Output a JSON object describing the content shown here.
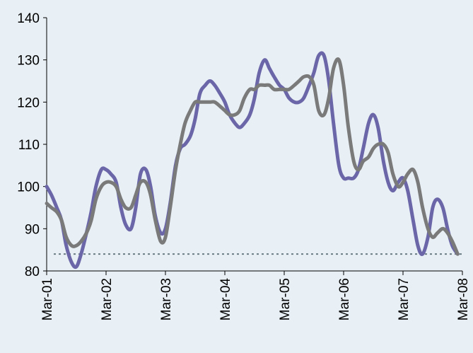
{
  "chart_data": {
    "type": "line",
    "title": "",
    "xlabel": "",
    "ylabel": "",
    "ylim": [
      80,
      140
    ],
    "yticks": [
      80,
      90,
      100,
      110,
      120,
      130,
      140
    ],
    "xlim": [
      2001.0,
      2008.0
    ],
    "xticks": [
      {
        "label": "Mar-01",
        "x": 2001.0
      },
      {
        "label": "Mar-02",
        "x": 2002.0
      },
      {
        "label": "Mar-03",
        "x": 2003.0
      },
      {
        "label": "Mar-04",
        "x": 2004.0
      },
      {
        "label": "Mar-05",
        "x": 2005.0
      },
      {
        "label": "Mar-06",
        "x": 2006.0
      },
      {
        "label": "Mar-07",
        "x": 2007.0
      },
      {
        "label": "Mar-08",
        "x": 2008.0
      }
    ],
    "grid": false,
    "legend": "none",
    "reference_line": {
      "y": 84,
      "style": "dotted",
      "color": "#6b7b83"
    },
    "series": [
      {
        "color": "#6a66a8",
        "points": [
          [
            2001.0,
            100
          ],
          [
            2001.08,
            98
          ],
          [
            2001.17,
            95
          ],
          [
            2001.25,
            92
          ],
          [
            2001.33,
            86
          ],
          [
            2001.42,
            82
          ],
          [
            2001.5,
            81
          ],
          [
            2001.58,
            84
          ],
          [
            2001.67,
            89
          ],
          [
            2001.75,
            94
          ],
          [
            2001.83,
            100
          ],
          [
            2001.92,
            104
          ],
          [
            2002.0,
            104
          ],
          [
            2002.08,
            103
          ],
          [
            2002.17,
            101
          ],
          [
            2002.25,
            95
          ],
          [
            2002.33,
            91
          ],
          [
            2002.42,
            90
          ],
          [
            2002.5,
            95
          ],
          [
            2002.58,
            103
          ],
          [
            2002.67,
            104
          ],
          [
            2002.75,
            100
          ],
          [
            2002.83,
            93
          ],
          [
            2002.92,
            89
          ],
          [
            2003.0,
            90
          ],
          [
            2003.08,
            96
          ],
          [
            2003.17,
            105
          ],
          [
            2003.25,
            109
          ],
          [
            2003.33,
            110
          ],
          [
            2003.42,
            112
          ],
          [
            2003.5,
            116
          ],
          [
            2003.58,
            122
          ],
          [
            2003.67,
            124
          ],
          [
            2003.75,
            125
          ],
          [
            2003.83,
            124
          ],
          [
            2003.92,
            122
          ],
          [
            2004.0,
            120
          ],
          [
            2004.08,
            117
          ],
          [
            2004.17,
            115
          ],
          [
            2004.25,
            114
          ],
          [
            2004.33,
            115
          ],
          [
            2004.42,
            117
          ],
          [
            2004.5,
            121
          ],
          [
            2004.58,
            127
          ],
          [
            2004.67,
            130
          ],
          [
            2004.75,
            128
          ],
          [
            2004.83,
            126
          ],
          [
            2004.92,
            124
          ],
          [
            2005.0,
            123
          ],
          [
            2005.08,
            121
          ],
          [
            2005.17,
            120
          ],
          [
            2005.25,
            120
          ],
          [
            2005.33,
            121
          ],
          [
            2005.42,
            124
          ],
          [
            2005.5,
            127
          ],
          [
            2005.58,
            131
          ],
          [
            2005.67,
            131
          ],
          [
            2005.75,
            125
          ],
          [
            2005.83,
            115
          ],
          [
            2005.92,
            105
          ],
          [
            2006.0,
            102
          ],
          [
            2006.08,
            102
          ],
          [
            2006.17,
            102
          ],
          [
            2006.25,
            104
          ],
          [
            2006.33,
            109
          ],
          [
            2006.42,
            115
          ],
          [
            2006.5,
            117
          ],
          [
            2006.58,
            114
          ],
          [
            2006.67,
            106
          ],
          [
            2006.75,
            101
          ],
          [
            2006.83,
            99
          ],
          [
            2006.92,
            101
          ],
          [
            2007.0,
            102
          ],
          [
            2007.08,
            99
          ],
          [
            2007.17,
            92
          ],
          [
            2007.25,
            86
          ],
          [
            2007.33,
            84
          ],
          [
            2007.42,
            88
          ],
          [
            2007.5,
            95
          ],
          [
            2007.58,
            97
          ],
          [
            2007.67,
            95
          ],
          [
            2007.75,
            90
          ],
          [
            2007.83,
            86
          ],
          [
            2007.92,
            84
          ]
        ]
      },
      {
        "color": "#7a7a7a",
        "points": [
          [
            2001.0,
            96
          ],
          [
            2001.08,
            95
          ],
          [
            2001.17,
            94
          ],
          [
            2001.25,
            92
          ],
          [
            2001.33,
            88
          ],
          [
            2001.42,
            86
          ],
          [
            2001.5,
            86
          ],
          [
            2001.58,
            87
          ],
          [
            2001.67,
            89
          ],
          [
            2001.75,
            92
          ],
          [
            2001.83,
            97
          ],
          [
            2001.92,
            100
          ],
          [
            2002.0,
            101
          ],
          [
            2002.08,
            101
          ],
          [
            2002.17,
            100
          ],
          [
            2002.25,
            97
          ],
          [
            2002.33,
            95
          ],
          [
            2002.42,
            95
          ],
          [
            2002.5,
            98
          ],
          [
            2002.58,
            101
          ],
          [
            2002.67,
            101
          ],
          [
            2002.75,
            98
          ],
          [
            2002.83,
            92
          ],
          [
            2002.92,
            87
          ],
          [
            2003.0,
            88
          ],
          [
            2003.08,
            95
          ],
          [
            2003.17,
            104
          ],
          [
            2003.25,
            110
          ],
          [
            2003.33,
            115
          ],
          [
            2003.42,
            118
          ],
          [
            2003.5,
            120
          ],
          [
            2003.58,
            120
          ],
          [
            2003.67,
            120
          ],
          [
            2003.75,
            120
          ],
          [
            2003.83,
            120
          ],
          [
            2003.92,
            119
          ],
          [
            2004.0,
            118
          ],
          [
            2004.08,
            117
          ],
          [
            2004.17,
            117
          ],
          [
            2004.25,
            118
          ],
          [
            2004.33,
            121
          ],
          [
            2004.42,
            123
          ],
          [
            2004.5,
            123
          ],
          [
            2004.58,
            124
          ],
          [
            2004.67,
            124
          ],
          [
            2004.75,
            124
          ],
          [
            2004.83,
            123
          ],
          [
            2004.92,
            123
          ],
          [
            2005.0,
            123
          ],
          [
            2005.08,
            123
          ],
          [
            2005.17,
            124
          ],
          [
            2005.25,
            125
          ],
          [
            2005.33,
            126
          ],
          [
            2005.42,
            126
          ],
          [
            2005.5,
            124
          ],
          [
            2005.58,
            118
          ],
          [
            2005.67,
            117
          ],
          [
            2005.75,
            121
          ],
          [
            2005.83,
            128
          ],
          [
            2005.92,
            130
          ],
          [
            2006.0,
            124
          ],
          [
            2006.08,
            114
          ],
          [
            2006.17,
            106
          ],
          [
            2006.25,
            104
          ],
          [
            2006.33,
            106
          ],
          [
            2006.42,
            107
          ],
          [
            2006.5,
            109
          ],
          [
            2006.58,
            110
          ],
          [
            2006.67,
            110
          ],
          [
            2006.75,
            108
          ],
          [
            2006.83,
            103
          ],
          [
            2006.92,
            100
          ],
          [
            2007.0,
            101
          ],
          [
            2007.08,
            103
          ],
          [
            2007.17,
            104
          ],
          [
            2007.25,
            101
          ],
          [
            2007.33,
            95
          ],
          [
            2007.42,
            90
          ],
          [
            2007.5,
            88
          ],
          [
            2007.58,
            89
          ],
          [
            2007.67,
            90
          ],
          [
            2007.75,
            89
          ],
          [
            2007.83,
            87
          ],
          [
            2007.92,
            84
          ]
        ]
      }
    ]
  }
}
